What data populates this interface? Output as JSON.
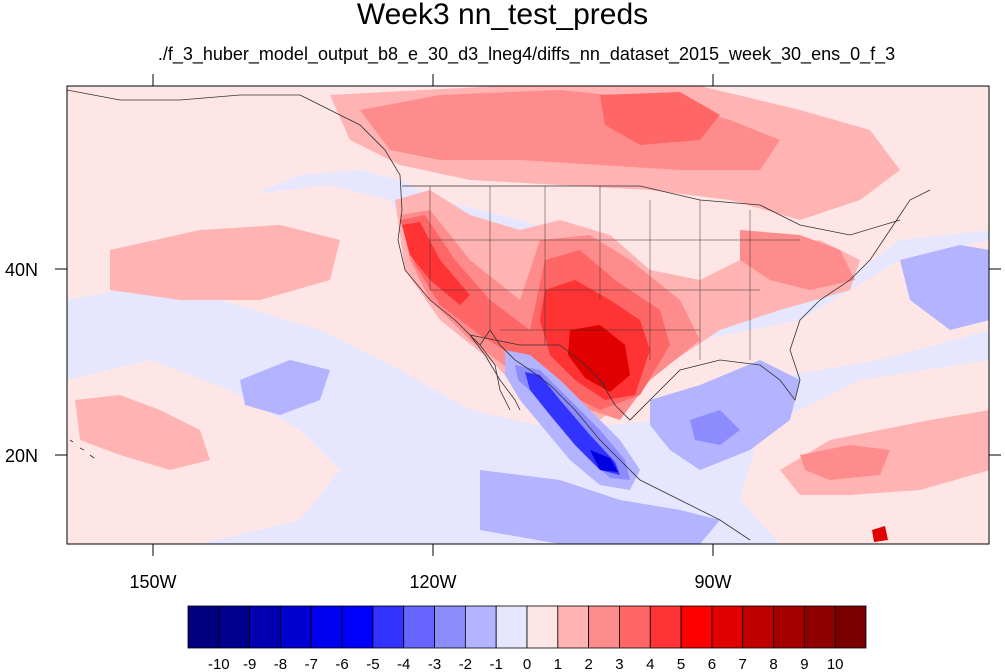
{
  "title": "Week3 nn_test_preds",
  "subtitle": "./f_3_huber_model_output_b8_e_30_d3_lneg4/diffs_nn_dataset_2015_week_30_ens_0_f_3",
  "axes": {
    "x_labels": [
      "150W",
      "120W",
      "90W"
    ],
    "y_labels": [
      "40N",
      "20N"
    ]
  },
  "colorbar": {
    "labels": [
      "-10",
      "-9",
      "-8",
      "-7",
      "-6",
      "-5",
      "-4",
      "-3",
      "-2",
      "-1",
      "0",
      "1",
      "2",
      "3",
      "4",
      "5",
      "6",
      "7",
      "8",
      "9",
      "10"
    ],
    "colors": [
      "#000080",
      "#00008f",
      "#0000b0",
      "#0000d0",
      "#0000f0",
      "#0000ff",
      "#3333ff",
      "#6666ff",
      "#8c8cff",
      "#b3b3ff",
      "#e6e6ff",
      "#ffe6e6",
      "#ffb3b3",
      "#ff8c8c",
      "#ff6666",
      "#ff3333",
      "#ff0000",
      "#e00000",
      "#c00000",
      "#a50000",
      "#900000",
      "#7a0000"
    ]
  },
  "map_colors": {
    "neutral_neg": "#e6e6ff",
    "neutral_pos": "#ffe6e6",
    "light_red": "#ffb3b3",
    "mid_red": "#ff8c8c",
    "red": "#ff6666",
    "strong_red": "#ff3333",
    "deep_red": "#e00000",
    "light_blue": "#b3b3ff",
    "mid_blue": "#8c8cff",
    "blue": "#3333ff",
    "deep_blue": "#0000e0"
  }
}
